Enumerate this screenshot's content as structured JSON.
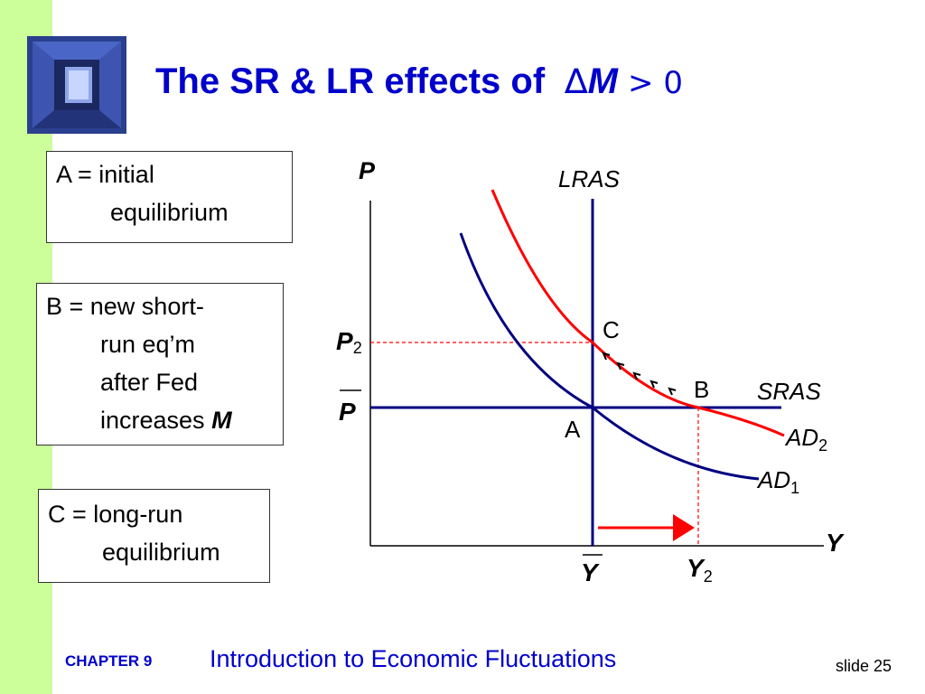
{
  "slide": {
    "title": "The SR & LR effects of",
    "title_delta": "∆",
    "title_m": "M",
    "title_rel": "> 0",
    "footer_chapter": "CHAPTER 9",
    "footer_title": "Introduction to Economic Fluctuations",
    "footer_slide": "slide 25"
  },
  "boxes": {
    "a": {
      "line1": "A = initial",
      "line2": "equilibrium"
    },
    "b": {
      "line1": "B = new short-",
      "line2": "run eq’m",
      "line3": "after Fed",
      "line4_prefix": "increases",
      "line4_var": "M"
    },
    "c": {
      "line1": "C = long-run",
      "line2": "equilibrium"
    }
  },
  "diagram": {
    "axis_y_label": "P",
    "axis_x_label": "Y",
    "lras_label": "LRAS",
    "sras_label": "SRAS",
    "ad1_label": "AD",
    "ad1_sub": "1",
    "ad2_label": "AD",
    "ad2_sub": "2",
    "p2_label": "P",
    "p2_sub": "2",
    "pbar_label": "P",
    "ybar_label": "Y",
    "y2_label": "Y",
    "y2_sub": "2",
    "point_a": "A",
    "point_b": "B",
    "point_c": "C",
    "colors": {
      "ad1": "#000080",
      "ad2": "#ff0000",
      "axis": "#000000",
      "lras": "#000080",
      "sras": "#000080",
      "guide": "#ff0000",
      "arrow": "#ff0000"
    }
  }
}
